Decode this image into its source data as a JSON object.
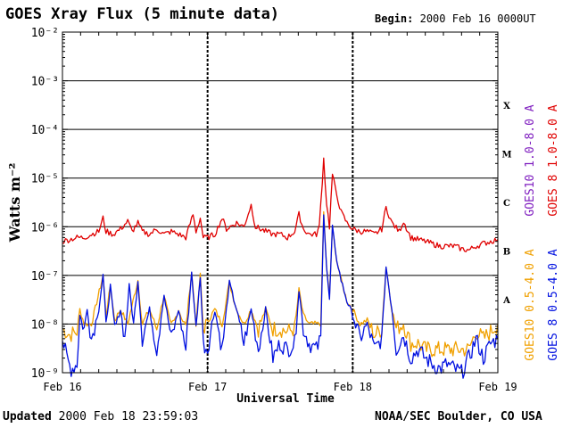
{
  "title": "GOES Xray Flux (5 minute data)",
  "begin_label": "Begin:",
  "begin_value": "2000 Feb 16 0000UT",
  "updated_label": "Updated",
  "updated_value": "2000 Feb 18 23:59:03",
  "credit": "NOAA/SEC Boulder, CO USA",
  "colors": {
    "goes10_long": "#8020c0",
    "goes8_long": "#e00000",
    "goes10_short": "#f0a000",
    "goes8_short": "#0010e0"
  },
  "chart_data": {
    "type": "line",
    "title": "GOES Xray Flux (5 minute data)",
    "xlabel": "Universal Time",
    "ylabel": "Watts m⁻²",
    "yscale": "log",
    "ylim": [
      1e-09,
      0.01
    ],
    "y_tick_labels": [
      "10⁻⁹",
      "10⁻⁸",
      "10⁻⁷",
      "10⁻⁶",
      "10⁻⁵",
      "10⁻⁴",
      "10⁻³",
      "10⁻²"
    ],
    "x_ticks": [
      "Feb 16",
      "Feb 17",
      "Feb 18",
      "Feb 19"
    ],
    "x_range_days": [
      0,
      3
    ],
    "flare_classes": [
      {
        "label": "A",
        "level": 1e-08
      },
      {
        "label": "B",
        "level": 1e-07
      },
      {
        "label": "C",
        "level": 1e-06
      },
      {
        "label": "M",
        "level": 1e-05
      },
      {
        "label": "X",
        "level": 0.0001
      }
    ],
    "legend_position": "right",
    "series": [
      {
        "name": "GOES 8 1.0-8.0 A",
        "color": "#e00000",
        "points": [
          [
            0.0,
            5e-07
          ],
          [
            0.05,
            5.5e-07
          ],
          [
            0.1,
            6e-07
          ],
          [
            0.15,
            6e-07
          ],
          [
            0.2,
            7e-07
          ],
          [
            0.25,
            8e-07
          ],
          [
            0.28,
            1.5e-06
          ],
          [
            0.3,
            8e-07
          ],
          [
            0.35,
            7e-07
          ],
          [
            0.4,
            9e-07
          ],
          [
            0.45,
            1.3e-06
          ],
          [
            0.48,
            8e-07
          ],
          [
            0.52,
            1.2e-06
          ],
          [
            0.55,
            8e-07
          ],
          [
            0.6,
            7e-07
          ],
          [
            0.65,
            9e-07
          ],
          [
            0.7,
            7e-07
          ],
          [
            0.75,
            8e-07
          ],
          [
            0.8,
            7e-07
          ],
          [
            0.85,
            6e-07
          ],
          [
            0.9,
            1.8e-06
          ],
          [
            0.92,
            8e-07
          ],
          [
            0.95,
            1.5e-06
          ],
          [
            0.97,
            6e-07
          ],
          [
            1.0,
            6e-07
          ],
          [
            1.05,
            7e-07
          ],
          [
            1.1,
            1.5e-06
          ],
          [
            1.13,
            9e-07
          ],
          [
            1.2,
            1.2e-06
          ],
          [
            1.25,
            1e-06
          ],
          [
            1.3,
            2.8e-06
          ],
          [
            1.33,
            1e-06
          ],
          [
            1.4,
            8e-07
          ],
          [
            1.45,
            7e-07
          ],
          [
            1.5,
            7e-07
          ],
          [
            1.55,
            6e-07
          ],
          [
            1.6,
            8e-07
          ],
          [
            1.63,
            1.8e-06
          ],
          [
            1.66,
            9e-07
          ],
          [
            1.7,
            7e-07
          ],
          [
            1.75,
            7e-07
          ],
          [
            1.77,
            1e-06
          ],
          [
            1.8,
            2.5e-05
          ],
          [
            1.82,
            3e-06
          ],
          [
            1.84,
            1e-06
          ],
          [
            1.86,
            1.2e-05
          ],
          [
            1.88,
            6e-06
          ],
          [
            1.92,
            2e-06
          ],
          [
            1.96,
            1.2e-06
          ],
          [
            2.0,
            9e-07
          ],
          [
            2.05,
            8e-07
          ],
          [
            2.1,
            8e-07
          ],
          [
            2.15,
            7e-07
          ],
          [
            2.2,
            9e-07
          ],
          [
            2.23,
            2.5e-06
          ],
          [
            2.27,
            1.2e-06
          ],
          [
            2.32,
            8e-07
          ],
          [
            2.35,
            1.3e-06
          ],
          [
            2.4,
            6e-07
          ],
          [
            2.5,
            5e-07
          ],
          [
            2.6,
            4e-07
          ],
          [
            2.7,
            4e-07
          ],
          [
            2.75,
            3.5e-07
          ],
          [
            2.8,
            3.3e-07
          ],
          [
            2.85,
            4e-07
          ],
          [
            2.9,
            4.5e-07
          ],
          [
            2.95,
            5e-07
          ],
          [
            3.0,
            5.5e-07
          ]
        ]
      },
      {
        "name": "GOES 8 0.5-4.0 A",
        "color": "#0010e0",
        "points": [
          [
            0.0,
            5e-09
          ],
          [
            0.03,
            2e-09
          ],
          [
            0.06,
            1.2e-09
          ],
          [
            0.1,
            1.5e-09
          ],
          [
            0.12,
            1.5e-08
          ],
          [
            0.15,
            8e-09
          ],
          [
            0.17,
            2e-08
          ],
          [
            0.2,
            5e-09
          ],
          [
            0.25,
            2e-08
          ],
          [
            0.28,
            1e-07
          ],
          [
            0.3,
            1e-08
          ],
          [
            0.33,
            6e-08
          ],
          [
            0.36,
            8e-09
          ],
          [
            0.4,
            2e-08
          ],
          [
            0.43,
            5e-09
          ],
          [
            0.46,
            6e-08
          ],
          [
            0.49,
            1e-08
          ],
          [
            0.52,
            8e-08
          ],
          [
            0.55,
            5e-09
          ],
          [
            0.6,
            2e-08
          ],
          [
            0.65,
            3e-09
          ],
          [
            0.7,
            4e-08
          ],
          [
            0.75,
            5e-09
          ],
          [
            0.8,
            2e-08
          ],
          [
            0.85,
            3e-09
          ],
          [
            0.89,
            1.2e-07
          ],
          [
            0.92,
            8e-09
          ],
          [
            0.95,
            1e-07
          ],
          [
            0.97,
            4e-09
          ],
          [
            1.0,
            3e-09
          ],
          [
            1.05,
            2e-08
          ],
          [
            1.1,
            3e-09
          ],
          [
            1.15,
            7e-08
          ],
          [
            1.2,
            2e-08
          ],
          [
            1.25,
            4e-09
          ],
          [
            1.3,
            2e-08
          ],
          [
            1.35,
            3e-09
          ],
          [
            1.4,
            2e-08
          ],
          [
            1.45,
            2e-09
          ],
          [
            1.5,
            4e-09
          ],
          [
            1.55,
            3e-09
          ],
          [
            1.6,
            4e-09
          ],
          [
            1.63,
            5e-08
          ],
          [
            1.66,
            8e-09
          ],
          [
            1.7,
            4e-09
          ],
          [
            1.75,
            3e-09
          ],
          [
            1.78,
            5e-09
          ],
          [
            1.8,
            2e-06
          ],
          [
            1.82,
            1.5e-07
          ],
          [
            1.84,
            3e-08
          ],
          [
            1.86,
            1e-06
          ],
          [
            1.88,
            3e-07
          ],
          [
            1.92,
            8e-08
          ],
          [
            1.96,
            3e-08
          ],
          [
            2.0,
            1.5e-08
          ],
          [
            2.05,
            5e-09
          ],
          [
            2.1,
            1e-08
          ],
          [
            2.15,
            3e-09
          ],
          [
            2.2,
            5e-09
          ],
          [
            2.23,
            1.5e-07
          ],
          [
            2.27,
            2e-08
          ],
          [
            2.3,
            3e-09
          ],
          [
            2.35,
            6e-09
          ],
          [
            2.4,
            2e-09
          ],
          [
            2.45,
            3e-09
          ],
          [
            2.5,
            2e-09
          ],
          [
            2.55,
            1.5e-09
          ],
          [
            2.6,
            1.2e-09
          ],
          [
            2.65,
            1.5e-09
          ],
          [
            2.7,
            1.2e-09
          ],
          [
            2.75,
            1e-09
          ],
          [
            2.8,
            2e-09
          ],
          [
            2.85,
            5e-09
          ],
          [
            2.9,
            2e-09
          ],
          [
            2.95,
            4e-09
          ],
          [
            3.0,
            5e-09
          ]
        ]
      },
      {
        "name": "GOES10 0.5-4.0 A",
        "color": "#f0a000",
        "points": [
          [
            0.0,
            8e-09
          ],
          [
            0.05,
            6e-09
          ],
          [
            0.1,
            7e-09
          ],
          [
            0.12,
            2e-08
          ],
          [
            0.15,
            1e-08
          ],
          [
            0.2,
            1e-08
          ],
          [
            0.28,
            1e-07
          ],
          [
            0.3,
            1.5e-08
          ],
          [
            0.33,
            6e-08
          ],
          [
            0.36,
            1.2e-08
          ],
          [
            0.4,
            2e-08
          ],
          [
            0.45,
            1e-08
          ],
          [
            0.52,
            8e-08
          ],
          [
            0.55,
            1e-08
          ],
          [
            0.6,
            2e-08
          ],
          [
            0.65,
            8e-09
          ],
          [
            0.7,
            4e-08
          ],
          [
            0.75,
            8e-09
          ],
          [
            0.8,
            2e-08
          ],
          [
            0.85,
            8e-09
          ],
          [
            0.89,
            1.2e-07
          ],
          [
            0.92,
            1e-08
          ],
          [
            0.95,
            1e-07
          ],
          [
            0.97,
            8e-09
          ],
          [
            1.05,
            2e-08
          ],
          [
            1.1,
            1e-08
          ],
          [
            1.15,
            7e-08
          ],
          [
            1.2,
            2e-08
          ],
          [
            1.25,
            1e-08
          ],
          [
            1.3,
            2e-08
          ],
          [
            1.35,
            8e-09
          ],
          [
            1.4,
            2e-08
          ],
          [
            1.45,
            8e-09
          ],
          [
            1.5,
            8e-09
          ],
          [
            1.55,
            7e-09
          ],
          [
            1.6,
            8e-09
          ],
          [
            1.63,
            5e-08
          ],
          [
            1.66,
            1.5e-08
          ],
          [
            1.7,
            1e-08
          ],
          [
            1.75,
            1e-08
          ],
          [
            1.78,
            1e-08
          ],
          [
            1.8,
            2e-06
          ],
          [
            1.82,
            1.5e-07
          ],
          [
            1.84,
            3.5e-08
          ],
          [
            1.86,
            1e-06
          ],
          [
            1.88,
            3e-07
          ],
          [
            1.92,
            8e-08
          ],
          [
            1.96,
            3e-08
          ],
          [
            2.0,
            2e-08
          ],
          [
            2.05,
            1e-08
          ],
          [
            2.1,
            1.2e-08
          ],
          [
            2.15,
            6e-09
          ],
          [
            2.2,
            8e-09
          ],
          [
            2.23,
            1.5e-07
          ],
          [
            2.27,
            2e-08
          ],
          [
            2.3,
            8e-09
          ],
          [
            2.35,
            1e-08
          ],
          [
            2.4,
            4e-09
          ],
          [
            2.45,
            4e-09
          ],
          [
            2.5,
            3e-09
          ],
          [
            2.6,
            3e-09
          ],
          [
            2.7,
            3e-09
          ],
          [
            2.75,
            3e-09
          ],
          [
            2.8,
            3e-09
          ],
          [
            2.85,
            7e-09
          ],
          [
            2.9,
            5e-09
          ],
          [
            2.95,
            7e-09
          ],
          [
            3.0,
            1e-08
          ]
        ]
      },
      {
        "name": "GOES10 1.0-8.0 A",
        "color": "#8020c0",
        "points": []
      }
    ]
  }
}
